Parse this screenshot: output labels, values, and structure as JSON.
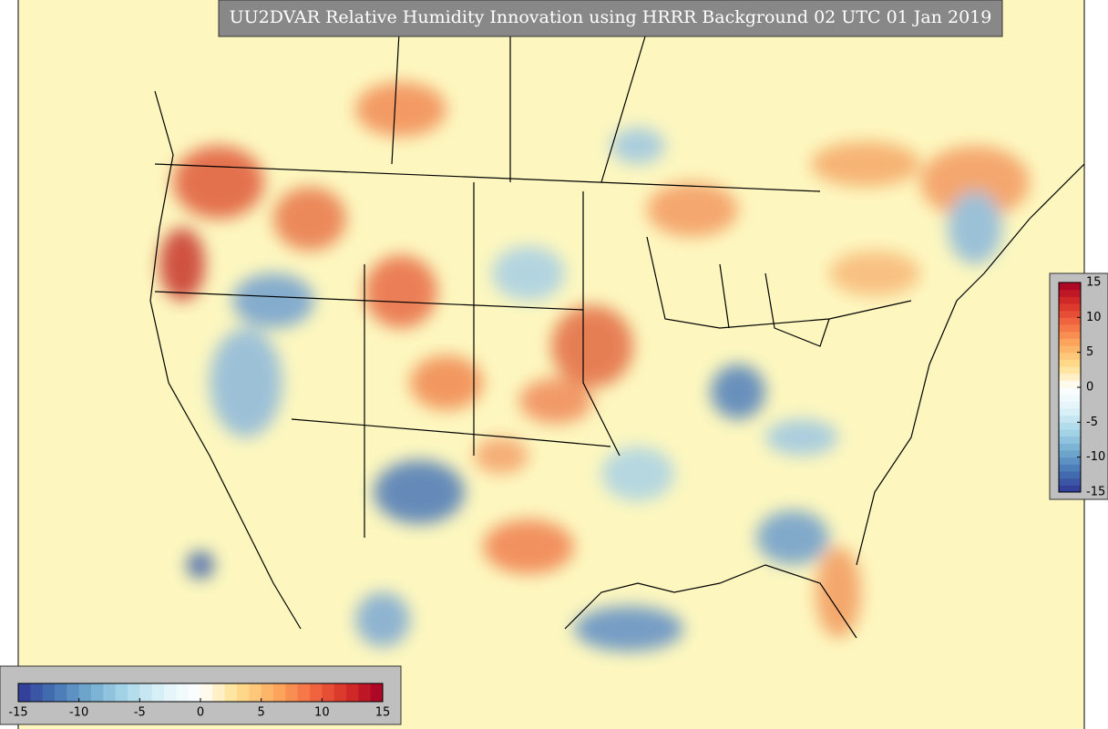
{
  "map": {
    "title": "UU2DVAR Relative Humidity Innovation using HRRR Background 02 UTC 01 Jan 2019",
    "colorbars": [
      {
        "orientation": "horizontal",
        "range": [
          -15,
          15
        ],
        "ticks": [
          -15,
          -10,
          -5,
          0,
          5,
          10,
          15
        ],
        "colors": [
          "#313695",
          "#4575b4",
          "#74add1",
          "#abd9e9",
          "#e0f3f8",
          "#ffffff",
          "#fee090",
          "#fdae61",
          "#f46d43",
          "#d73027",
          "#a50026"
        ]
      },
      {
        "orientation": "vertical",
        "range": [
          -15,
          15
        ],
        "ticks": [
          -15,
          -10,
          -5,
          0,
          5,
          10,
          15
        ],
        "colors": [
          "#313695",
          "#4575b4",
          "#74add1",
          "#abd9e9",
          "#e0f3f8",
          "#ffffff",
          "#fee090",
          "#fdae61",
          "#f46d43",
          "#d73027",
          "#a50026"
        ]
      }
    ]
  }
}
